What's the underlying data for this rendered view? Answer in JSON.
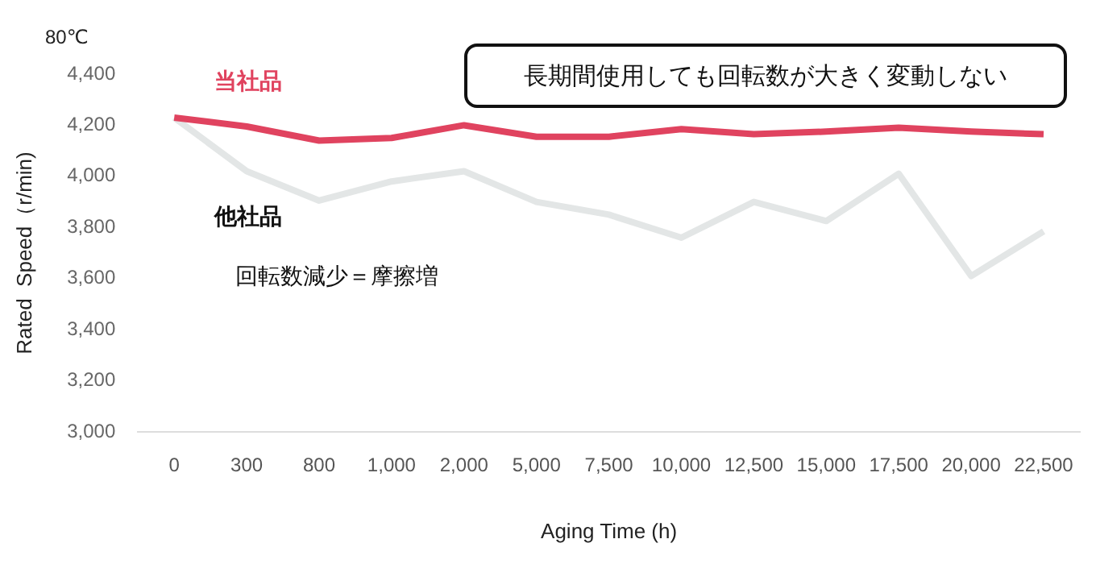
{
  "chart_data": {
    "type": "line",
    "title": "80℃",
    "xlabel": "Aging Time (h)",
    "ylabel": "Rated  Speed（r/min)",
    "categories": [
      "0",
      "300",
      "800",
      "1,000",
      "2,000",
      "5,000",
      "7,500",
      "10,000",
      "12,500",
      "15,000",
      "17,500",
      "20,000",
      "22,500"
    ],
    "series": [
      {
        "name": "当社品",
        "color": "#e0435f",
        "values": [
          4230,
          4195,
          4140,
          4150,
          4200,
          4155,
          4155,
          4185,
          4165,
          4175,
          4190,
          4175,
          4165
        ]
      },
      {
        "name": "他社品",
        "color": "#e3e6e6",
        "values": [
          4230,
          4020,
          3905,
          3980,
          4020,
          3900,
          3850,
          3760,
          3900,
          3825,
          4010,
          3610,
          3785
        ]
      }
    ],
    "ylim": [
      3000,
      4400
    ],
    "yticks": [
      {
        "value": 3000,
        "label": "3,000"
      },
      {
        "value": 3200,
        "label": "3,200"
      },
      {
        "value": 3400,
        "label": "3,400"
      },
      {
        "value": 3600,
        "label": "3,600"
      },
      {
        "value": 3800,
        "label": "3,800"
      },
      {
        "value": 4000,
        "label": "4,000"
      },
      {
        "value": 4200,
        "label": "4,200"
      },
      {
        "value": 4400,
        "label": "4,400"
      }
    ],
    "annotations": [
      "長期間使用しても回転数が大きく変動しない",
      "回転数減少＝摩擦増"
    ],
    "grid": false,
    "legend": false,
    "marker": "none",
    "line_style": "solid"
  }
}
